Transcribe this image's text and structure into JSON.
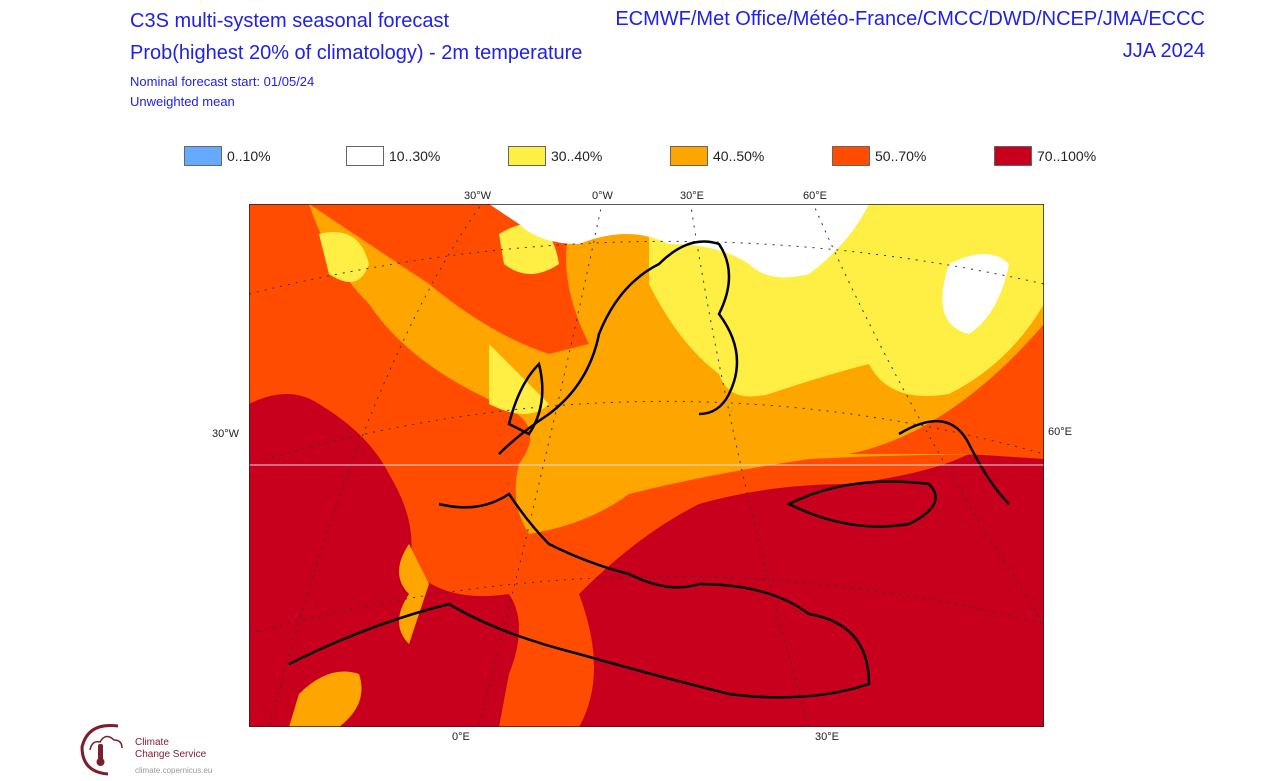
{
  "header": {
    "title": "C3S multi-system seasonal forecast",
    "subtitle": "Prob(highest 20% of climatology) - 2m temperature",
    "forecast_start": "Nominal forecast start: 01/05/24",
    "weighting": "Unweighted mean",
    "centres": "ECMWF/Met Office/Météo-France/CMCC/DWD/NCEP/JMA/ECCC",
    "season": "JJA 2024"
  },
  "legend": [
    {
      "label": "0..10%",
      "color": "#66aaff"
    },
    {
      "label": "10..30%",
      "color": "#ffffff"
    },
    {
      "label": "30..40%",
      "color": "#ffee44"
    },
    {
      "label": "40..50%",
      "color": "#ffa500"
    },
    {
      "label": "50..70%",
      "color": "#ff4c00"
    },
    {
      "label": "70..100%",
      "color": "#c8001e"
    }
  ],
  "map": {
    "top_labels": [
      "30°W",
      "0°W",
      "30°E",
      "60°E"
    ],
    "left_label": "30°W",
    "right_label": "60°E",
    "bottom_labels": [
      "0°E",
      "30°E"
    ]
  },
  "logo": {
    "line1": "Climate",
    "line2": "Change Service",
    "url": "climate.copernicus.eu"
  }
}
